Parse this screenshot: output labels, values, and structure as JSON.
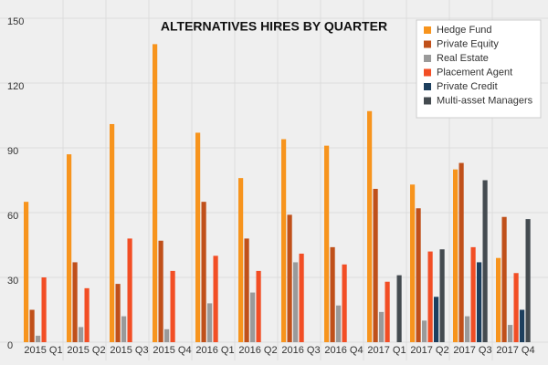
{
  "chart_data": {
    "type": "bar",
    "title": "ALTERNATIVES HIRES BY QUARTER",
    "categories": [
      "2015 Q1",
      "2015 Q2",
      "2015 Q3",
      "2015 Q4",
      "2016 Q1",
      "2016 Q2",
      "2016 Q3",
      "2016 Q4",
      "2017 Q1",
      "2017 Q2",
      "2017 Q3",
      "2017 Q4"
    ],
    "series": [
      {
        "name": "Hedge Fund",
        "color": "#f7941d",
        "values": [
          65,
          87,
          101,
          138,
          97,
          76,
          94,
          91,
          107,
          73,
          80,
          39
        ]
      },
      {
        "name": "Private Equity",
        "color": "#c0501a",
        "values": [
          15,
          37,
          27,
          47,
          65,
          48,
          59,
          44,
          71,
          62,
          83,
          58
        ]
      },
      {
        "name": "Real Estate",
        "color": "#9a9a9a",
        "values": [
          3,
          7,
          12,
          6,
          18,
          23,
          37,
          17,
          14,
          10,
          12,
          8
        ]
      },
      {
        "name": "Placement Agent",
        "color": "#f24e25",
        "values": [
          30,
          25,
          48,
          33,
          40,
          33,
          41,
          36,
          28,
          42,
          44,
          32
        ]
      },
      {
        "name": "Private Credit",
        "color": "#1d3f5e",
        "values": [
          null,
          null,
          null,
          null,
          null,
          null,
          null,
          null,
          null,
          21,
          37,
          15
        ]
      },
      {
        "name": "Multi-asset Managers",
        "color": "#444b50",
        "values": [
          null,
          null,
          null,
          null,
          null,
          null,
          null,
          null,
          31,
          43,
          75,
          57
        ]
      }
    ],
    "ylim": [
      0,
      150
    ],
    "yticks": [
      0,
      30,
      60,
      90,
      120,
      150
    ],
    "grid": true,
    "legend": "top-right"
  }
}
